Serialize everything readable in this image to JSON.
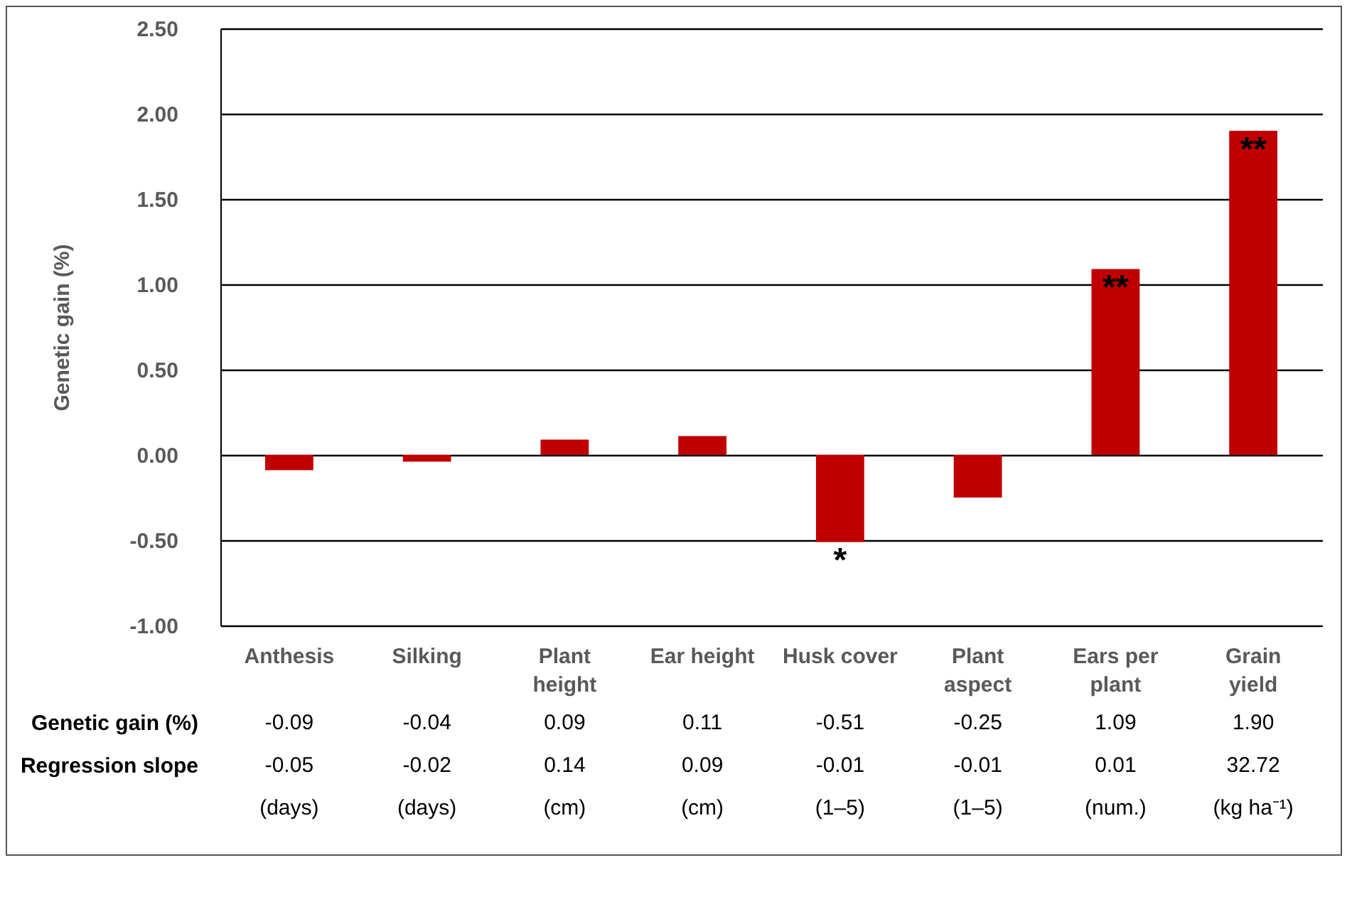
{
  "chart_data": {
    "type": "bar",
    "ylabel": "Genetic gain (%)",
    "categories": [
      "Anthesis",
      "Silking",
      "Plant height",
      "Ear height",
      "Husk cover",
      "Plant aspect",
      "Ears per plant",
      "Grain yield"
    ],
    "values": [
      -0.09,
      -0.04,
      0.09,
      0.11,
      -0.51,
      -0.25,
      1.09,
      1.9
    ],
    "value_labels": [
      "-0.09",
      "-0.04",
      "0.09",
      "0.11",
      "-0.51",
      "-0.25",
      "1.09",
      "1.90"
    ],
    "color": "#c00000",
    "ylim": [
      -1,
      2.5
    ],
    "yticks": [
      {
        "value": -1,
        "label": "-1.00"
      },
      {
        "value": -0.5,
        "label": "-0.50"
      },
      {
        "value": 0,
        "label": "0.00"
      },
      {
        "value": 0.5,
        "label": "0.50"
      },
      {
        "value": 1,
        "label": "1.00"
      },
      {
        "value": 1.5,
        "label": "1.50"
      },
      {
        "value": 2,
        "label": "2.00"
      },
      {
        "value": 2.5,
        "label": "2.50"
      }
    ],
    "grid": "y",
    "annotations": [
      "Genetic gain (%)",
      "Regression slope",
      "-0.05",
      "-0.02",
      "0.14",
      "0.09",
      "-0.01",
      "-0.01",
      "0.01",
      "32.72",
      "(days)",
      "(days)",
      "(cm)",
      "(cm)",
      "(1–5)",
      "(1–5)",
      "(num.)",
      "(kg ha⁻¹)",
      {
        "text": "*",
        "x": "Husk cover",
        "y": -0.51
      },
      {
        "text": "**",
        "x": "Ears per plant",
        "y": 1.09
      },
      {
        "text": "**",
        "x": "Grain yield",
        "y": 1.9
      }
    ]
  }
}
